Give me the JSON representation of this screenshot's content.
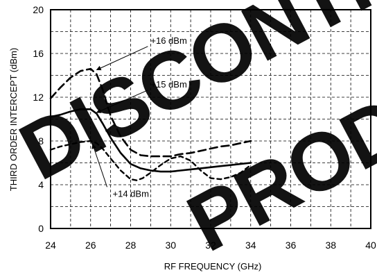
{
  "chart_data": {
    "type": "line",
    "xlabel": "RF FREQUENCY (GHz)",
    "ylabel": "THIRD ORDER INTERCEPT (dBm)",
    "xlim": [
      24,
      40
    ],
    "ylim": [
      0,
      20
    ],
    "x_ticks": [
      "24",
      "26",
      "28",
      "30",
      "32",
      "34",
      "36",
      "38",
      "40"
    ],
    "y_ticks": [
      "0",
      "4",
      "8",
      "12",
      "16",
      "20"
    ],
    "x_grid_step": 1,
    "y_grid_step": 2,
    "grid": true,
    "series": [
      {
        "name": "+16 dBm",
        "line_style": "long-dash",
        "x": [
          24,
          24.5,
          25,
          25.5,
          26,
          26.3,
          26.6,
          27,
          27.5,
          28,
          28.5,
          29,
          29.5,
          30,
          30.5,
          31,
          31.5,
          32,
          32.5,
          33,
          33.5,
          34
        ],
        "y": [
          11.9,
          12.9,
          13.8,
          14.4,
          14.6,
          14.1,
          12.7,
          10.3,
          8.4,
          7.2,
          6.7,
          6.6,
          6.6,
          6.6,
          6.8,
          6.9,
          7.1,
          7.3,
          7.5,
          7.6,
          7.8,
          8.0
        ]
      },
      {
        "name": "+15 dBm",
        "line_style": "solid",
        "x": [
          24,
          24.5,
          25,
          25.5,
          26,
          26.3,
          26.6,
          27,
          27.5,
          28,
          28.5,
          29,
          29.5,
          30,
          30.5,
          31,
          31.5,
          32,
          32.5,
          33,
          33.5,
          34
        ],
        "y": [
          10.2,
          10.4,
          10.7,
          10.9,
          10.9,
          10.5,
          9.6,
          8.3,
          6.9,
          5.9,
          5.5,
          5.3,
          5.2,
          5.2,
          5.3,
          5.4,
          5.5,
          5.6,
          5.7,
          5.8,
          5.9,
          6.0
        ]
      },
      {
        "name": "+14 dBm",
        "line_style": "short-dash",
        "x": [
          24,
          24.5,
          25,
          25.5,
          26,
          26.3,
          26.6,
          27,
          27.5,
          28,
          28.3,
          28.6,
          29,
          29.5,
          30,
          30.5,
          31,
          31.5,
          32,
          32.5,
          33,
          33.5,
          34
        ],
        "y": [
          7.2,
          7.5,
          7.7,
          7.9,
          8.0,
          7.8,
          7.3,
          6.4,
          5.3,
          4.5,
          4.4,
          4.6,
          5.1,
          5.8,
          6.4,
          6.6,
          6.2,
          5.3,
          4.6,
          4.5,
          4.7,
          5.1,
          5.8
        ]
      }
    ],
    "annotations": [
      {
        "text": "+16 dBm",
        "label_at": [
          29,
          16.9
        ],
        "arrow_to": [
          26.3,
          14.5
        ]
      },
      {
        "text": "+15 dBm",
        "label_at": [
          29,
          12.9
        ],
        "arrow_to": [
          26.3,
          10.6
        ]
      },
      {
        "text": "+14 dBm",
        "label_at": [
          27.1,
          2.9
        ],
        "arrow_to": [
          26.1,
          7.7
        ]
      }
    ]
  },
  "watermark": {
    "lines": [
      "DISCONTINUED",
      "PRODUCT"
    ]
  }
}
